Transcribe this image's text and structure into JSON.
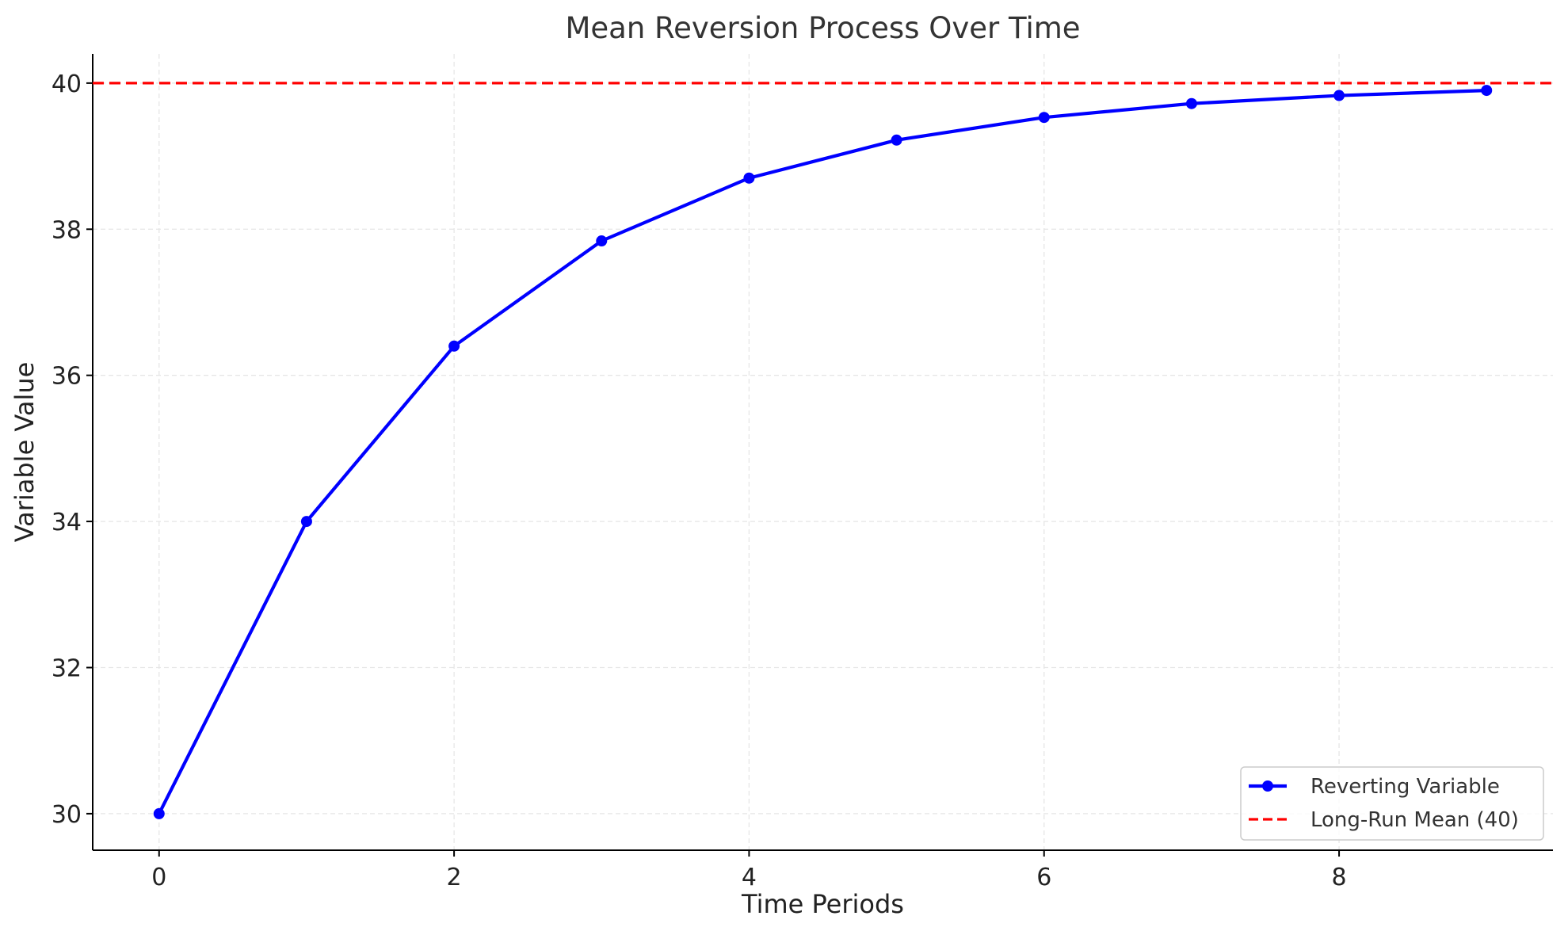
{
  "chart_data": {
    "type": "line",
    "title": "Mean Reversion Process Over Time",
    "xlabel": "Time Periods",
    "ylabel": "Variable Value",
    "xlim": [
      -0.45,
      9.45
    ],
    "ylim": [
      29.5,
      40.4
    ],
    "x_ticks": [
      0,
      2,
      4,
      6,
      8
    ],
    "y_ticks": [
      30,
      32,
      34,
      36,
      38,
      40
    ],
    "grid": true,
    "legend_position": "lower-right",
    "series": [
      {
        "name": "Reverting Variable",
        "color": "#0000ff",
        "style": "solid-with-markers",
        "x": [
          0,
          1,
          2,
          3,
          4,
          5,
          6,
          7,
          8,
          9
        ],
        "values": [
          30.0,
          34.0,
          36.4,
          37.84,
          38.7,
          39.22,
          39.53,
          39.72,
          39.83,
          39.9
        ]
      }
    ],
    "reference_lines": [
      {
        "name": "Long-Run Mean (40)",
        "y": 40,
        "color": "#ff0000",
        "style": "dashed"
      }
    ]
  }
}
